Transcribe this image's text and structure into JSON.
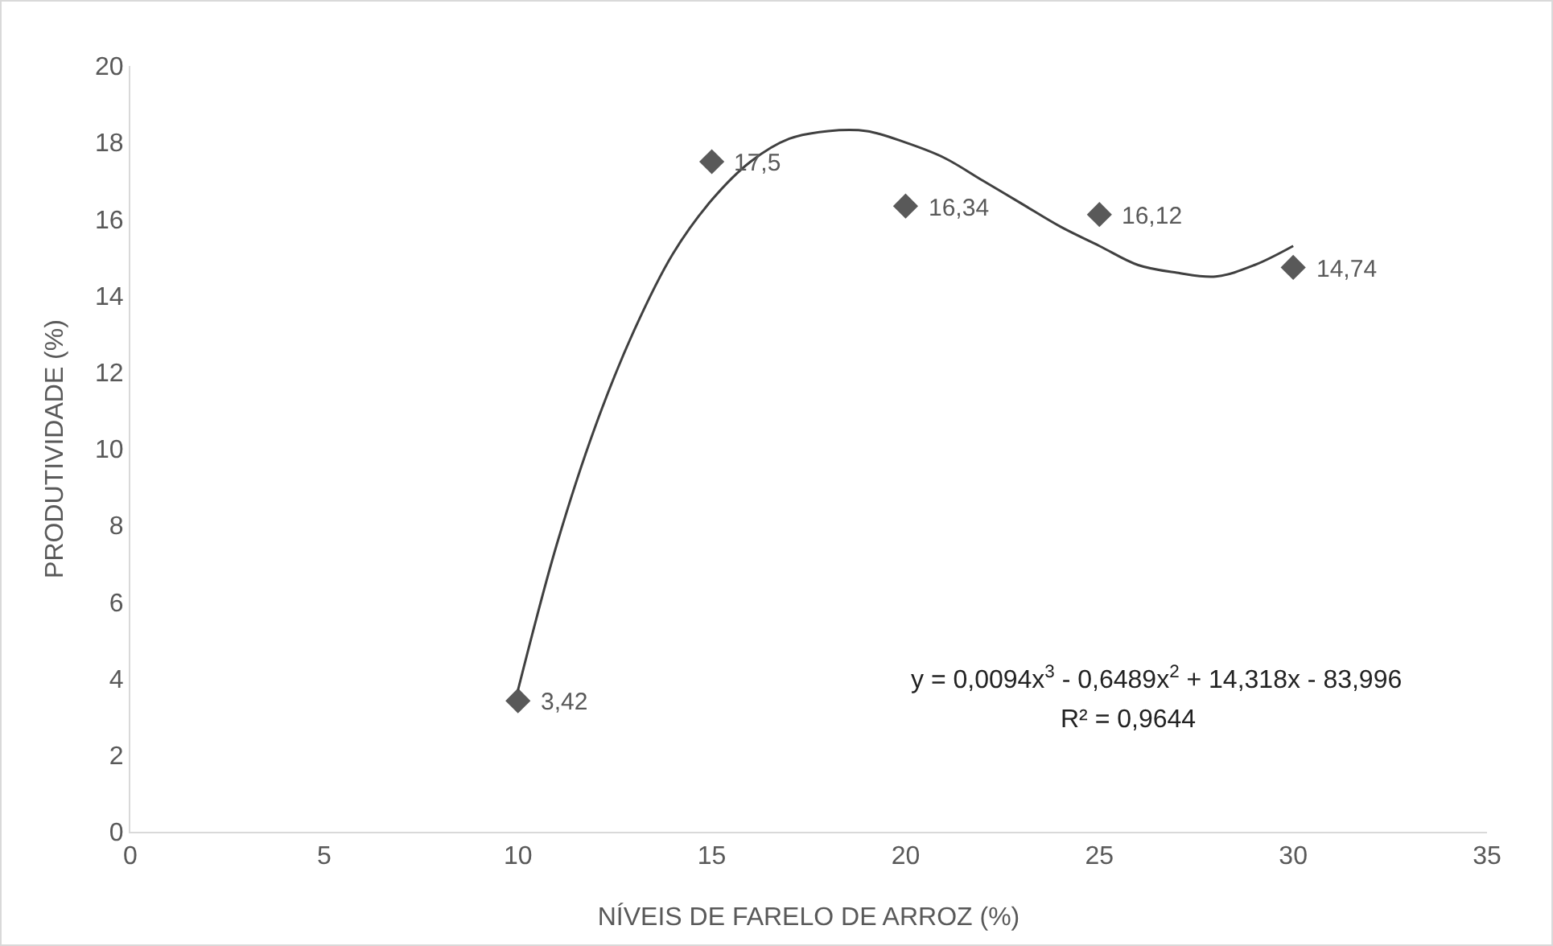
{
  "chart_data": {
    "type": "scatter",
    "xlabel": "NÍVEIS DE FARELO DE ARROZ (%)",
    "ylabel": "PRODUTIVIDADE (%)",
    "xlim": [
      0,
      35
    ],
    "xticks": [
      0,
      5,
      10,
      15,
      20,
      25,
      30,
      35
    ],
    "ylim": [
      0,
      20
    ],
    "yticks": [
      0,
      2,
      4,
      6,
      8,
      10,
      12,
      14,
      16,
      18,
      20
    ],
    "grid": false,
    "series": [
      {
        "color": "#595959",
        "marker": "diamond",
        "x": [
          10,
          15,
          20,
          25,
          30
        ],
        "values": [
          3.42,
          17.5,
          16.34,
          16.12,
          14.74
        ],
        "value_labels": [
          "3,42",
          "17,5",
          "16,34",
          "16,12",
          "14,74"
        ]
      },
      {
        "type": "line",
        "color": "#404040",
        "marker": "none",
        "line_style": "solid",
        "x": [
          10,
          11,
          12,
          13,
          14,
          15,
          16,
          17,
          18,
          19,
          20,
          21,
          22,
          23,
          24,
          25,
          26,
          27,
          28,
          29,
          30
        ],
        "values": [
          3.7,
          7.5,
          10.6,
          13.1,
          15.1,
          16.5,
          17.5,
          18.1,
          18.3,
          18.3,
          18.0,
          17.6,
          17.0,
          16.4,
          15.8,
          15.3,
          14.8,
          14.6,
          14.5,
          14.8,
          15.3
        ]
      }
    ],
    "annotations": [
      "y = 0,0094x$^{3}$ - 0,6489x$^{2}$ + 14,318x - 83,996",
      "R² = 0,9644"
    ]
  }
}
